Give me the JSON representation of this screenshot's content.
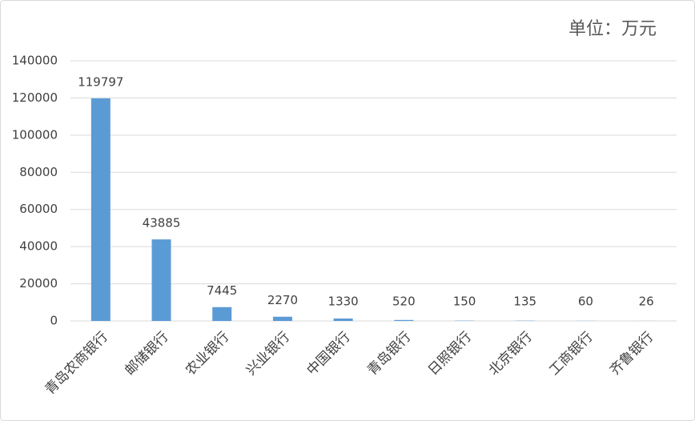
{
  "chart_data": {
    "type": "bar",
    "annotation": "单位：万元",
    "categories": [
      "青岛农商银行",
      "邮储银行",
      "农业银行",
      "兴业银行",
      "中国银行",
      "青岛银行",
      "日照银行",
      "北京银行",
      "工商银行",
      "齐鲁银行"
    ],
    "values": [
      119797,
      43885,
      7445,
      2270,
      1330,
      520,
      150,
      135,
      60,
      26
    ],
    "color": "#5b9bd5",
    "ylim": [
      0,
      140000
    ],
    "yticks": [
      0,
      20000,
      40000,
      60000,
      80000,
      100000,
      120000,
      140000
    ],
    "grid": true
  }
}
